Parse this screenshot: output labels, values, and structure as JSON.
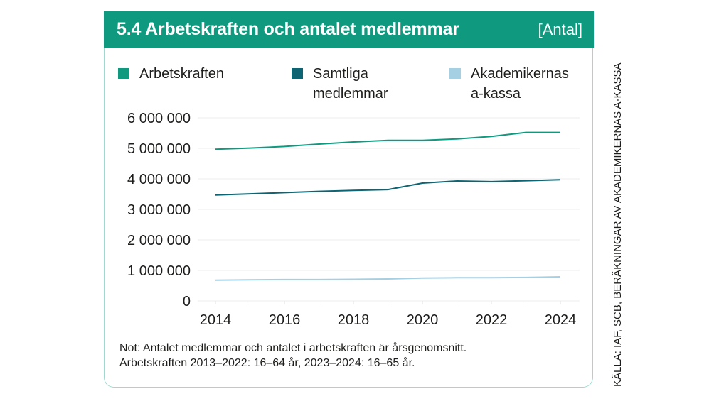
{
  "header": {
    "title": "5.4  Arbetskraften och antalet medlemmar",
    "unit": "[Antal]"
  },
  "legend": [
    {
      "label": "Arbetskraften",
      "color": "#0f9a80"
    },
    {
      "label": "Samtliga\nmedlemmar",
      "color": "#0d6472"
    },
    {
      "label": "Akademikernas\na-kassa",
      "color": "#a5cfe3"
    }
  ],
  "note": {
    "line1": "Not: Antalet medlemmar och antalet i arbetskraften är årsgenomsnitt.",
    "line2": "Arbetskraften 2013–2022: 16–64 år, 2023–2024: 16–65 år."
  },
  "source": "KÄLLA: IAF, SCB, BERÄKNINGAR AV AKADEMIKERNAS A-KASSA",
  "chart_data": {
    "type": "line",
    "title": "Arbetskraften och antalet medlemmar",
    "unit": "Antal",
    "xlabel": "",
    "ylabel": "",
    "x": [
      2014,
      2015,
      2016,
      2017,
      2018,
      2019,
      2020,
      2021,
      2022,
      2023,
      2024
    ],
    "xticks": [
      "2014",
      "2016",
      "2018",
      "2020",
      "2022",
      "2024"
    ],
    "xlim": [
      2014,
      2024
    ],
    "ylim": [
      0,
      6000000
    ],
    "yticks": [
      0,
      1000000,
      2000000,
      3000000,
      4000000,
      5000000,
      6000000
    ],
    "ytick_labels": [
      "0",
      "1 000 000",
      "2 000 000",
      "3 000 000",
      "4 000 000",
      "5 000 000",
      "6 000 000"
    ],
    "grid": true,
    "legend_position": "top",
    "series": [
      {
        "name": "Arbetskraften",
        "color": "#0f9a80",
        "values": [
          4970000,
          5010000,
          5060000,
          5140000,
          5210000,
          5260000,
          5260000,
          5310000,
          5390000,
          5520000,
          5520000
        ]
      },
      {
        "name": "Samtliga medlemmar",
        "color": "#0d6472",
        "values": [
          3470000,
          3510000,
          3550000,
          3590000,
          3620000,
          3650000,
          3860000,
          3930000,
          3910000,
          3940000,
          3970000
        ]
      },
      {
        "name": "Akademikernas a-kassa",
        "color": "#a5cfe3",
        "values": [
          680000,
          690000,
          700000,
          700000,
          710000,
          720000,
          750000,
          760000,
          760000,
          770000,
          790000
        ]
      }
    ]
  }
}
